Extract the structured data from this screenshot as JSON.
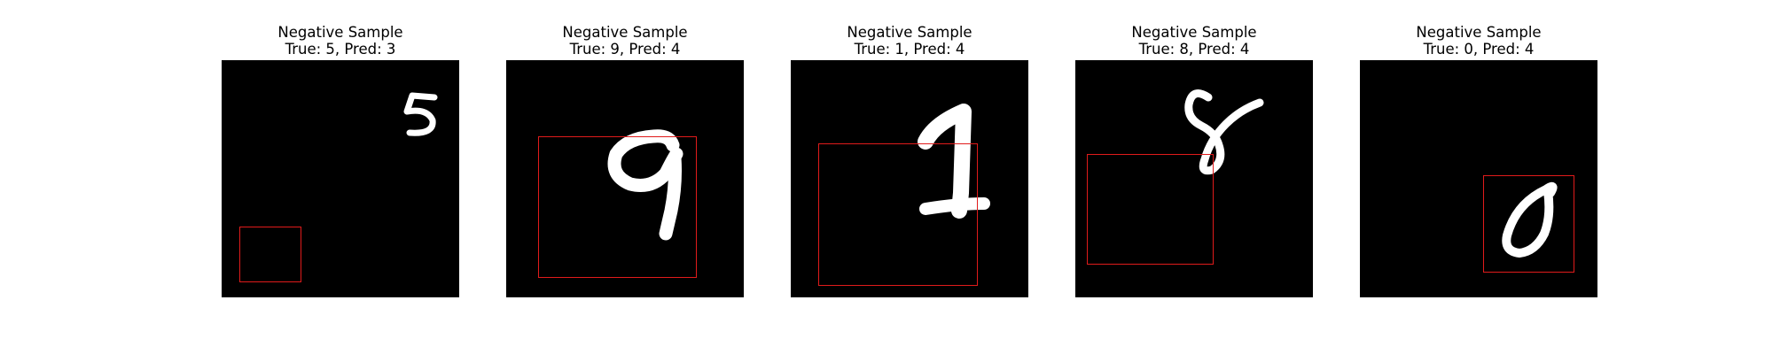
{
  "figure": {
    "panels": [
      {
        "title": "Negative Sample",
        "subtitle": "True: 5, Pred: 3",
        "digit_icon": "digit-5-icon"
      },
      {
        "title": "Negative Sample",
        "subtitle": "True: 9, Pred: 4",
        "digit_icon": "digit-9-icon"
      },
      {
        "title": "Negative Sample",
        "subtitle": "True: 1, Pred: 4",
        "digit_icon": "digit-1-icon"
      },
      {
        "title": "Negative Sample",
        "subtitle": "True: 8, Pred: 4",
        "digit_icon": "digit-8-icon"
      },
      {
        "title": "Negative Sample",
        "subtitle": "True: 0, Pred: 4",
        "digit_icon": "digit-0-icon"
      }
    ],
    "colors": {
      "background": "#000000",
      "stroke": "#ffffff",
      "box": "#e01b1b"
    }
  }
}
